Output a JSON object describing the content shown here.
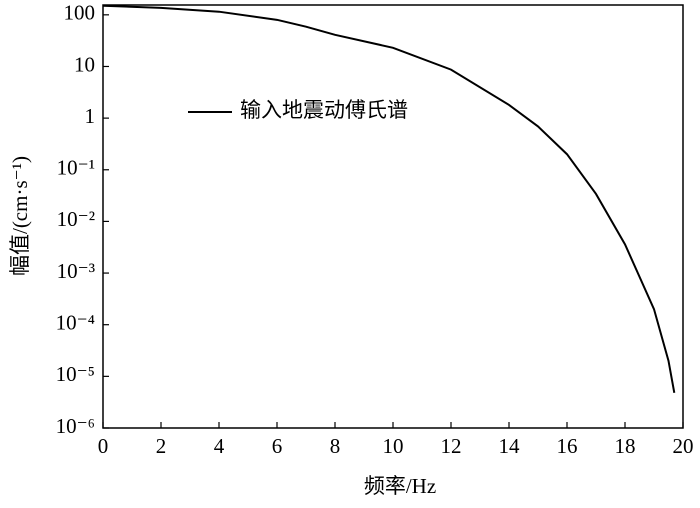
{
  "chart_data": {
    "type": "line",
    "log_y": true,
    "x_label": "频率/Hz",
    "y_label": "幅值/(cm·s⁻¹)",
    "x": [
      0,
      2,
      4,
      6,
      7,
      8,
      10,
      12,
      14,
      15,
      16,
      17,
      18,
      19,
      19.5,
      19.7
    ],
    "series": [
      {
        "name": "输入地震动傅氏谱",
        "color": "#000000",
        "values": [
          150,
          136,
          115,
          80,
          59,
          41,
          23,
          8.7,
          1.8,
          0.69,
          0.2,
          0.034,
          0.0036,
          0.0002,
          2e-05,
          4.8e-06
        ]
      }
    ],
    "xlim": [
      0,
      20
    ],
    "xticks": [
      0,
      2,
      4,
      6,
      8,
      10,
      12,
      14,
      16,
      18,
      20
    ],
    "ylim": [
      1e-06,
      155
    ],
    "yticks": [
      100,
      10,
      1,
      {
        "value": 0.1,
        "label": "10⁻¹"
      },
      {
        "value": 0.01,
        "label": "10⁻²"
      },
      {
        "value": 0.001,
        "label": "10⁻³"
      },
      {
        "value": 0.0001,
        "label": "10⁻⁴"
      },
      {
        "value": 1e-05,
        "label": "10⁻⁵"
      },
      {
        "value": 1e-06,
        "label": "10⁻⁶"
      }
    ],
    "legend": "upper-left"
  }
}
